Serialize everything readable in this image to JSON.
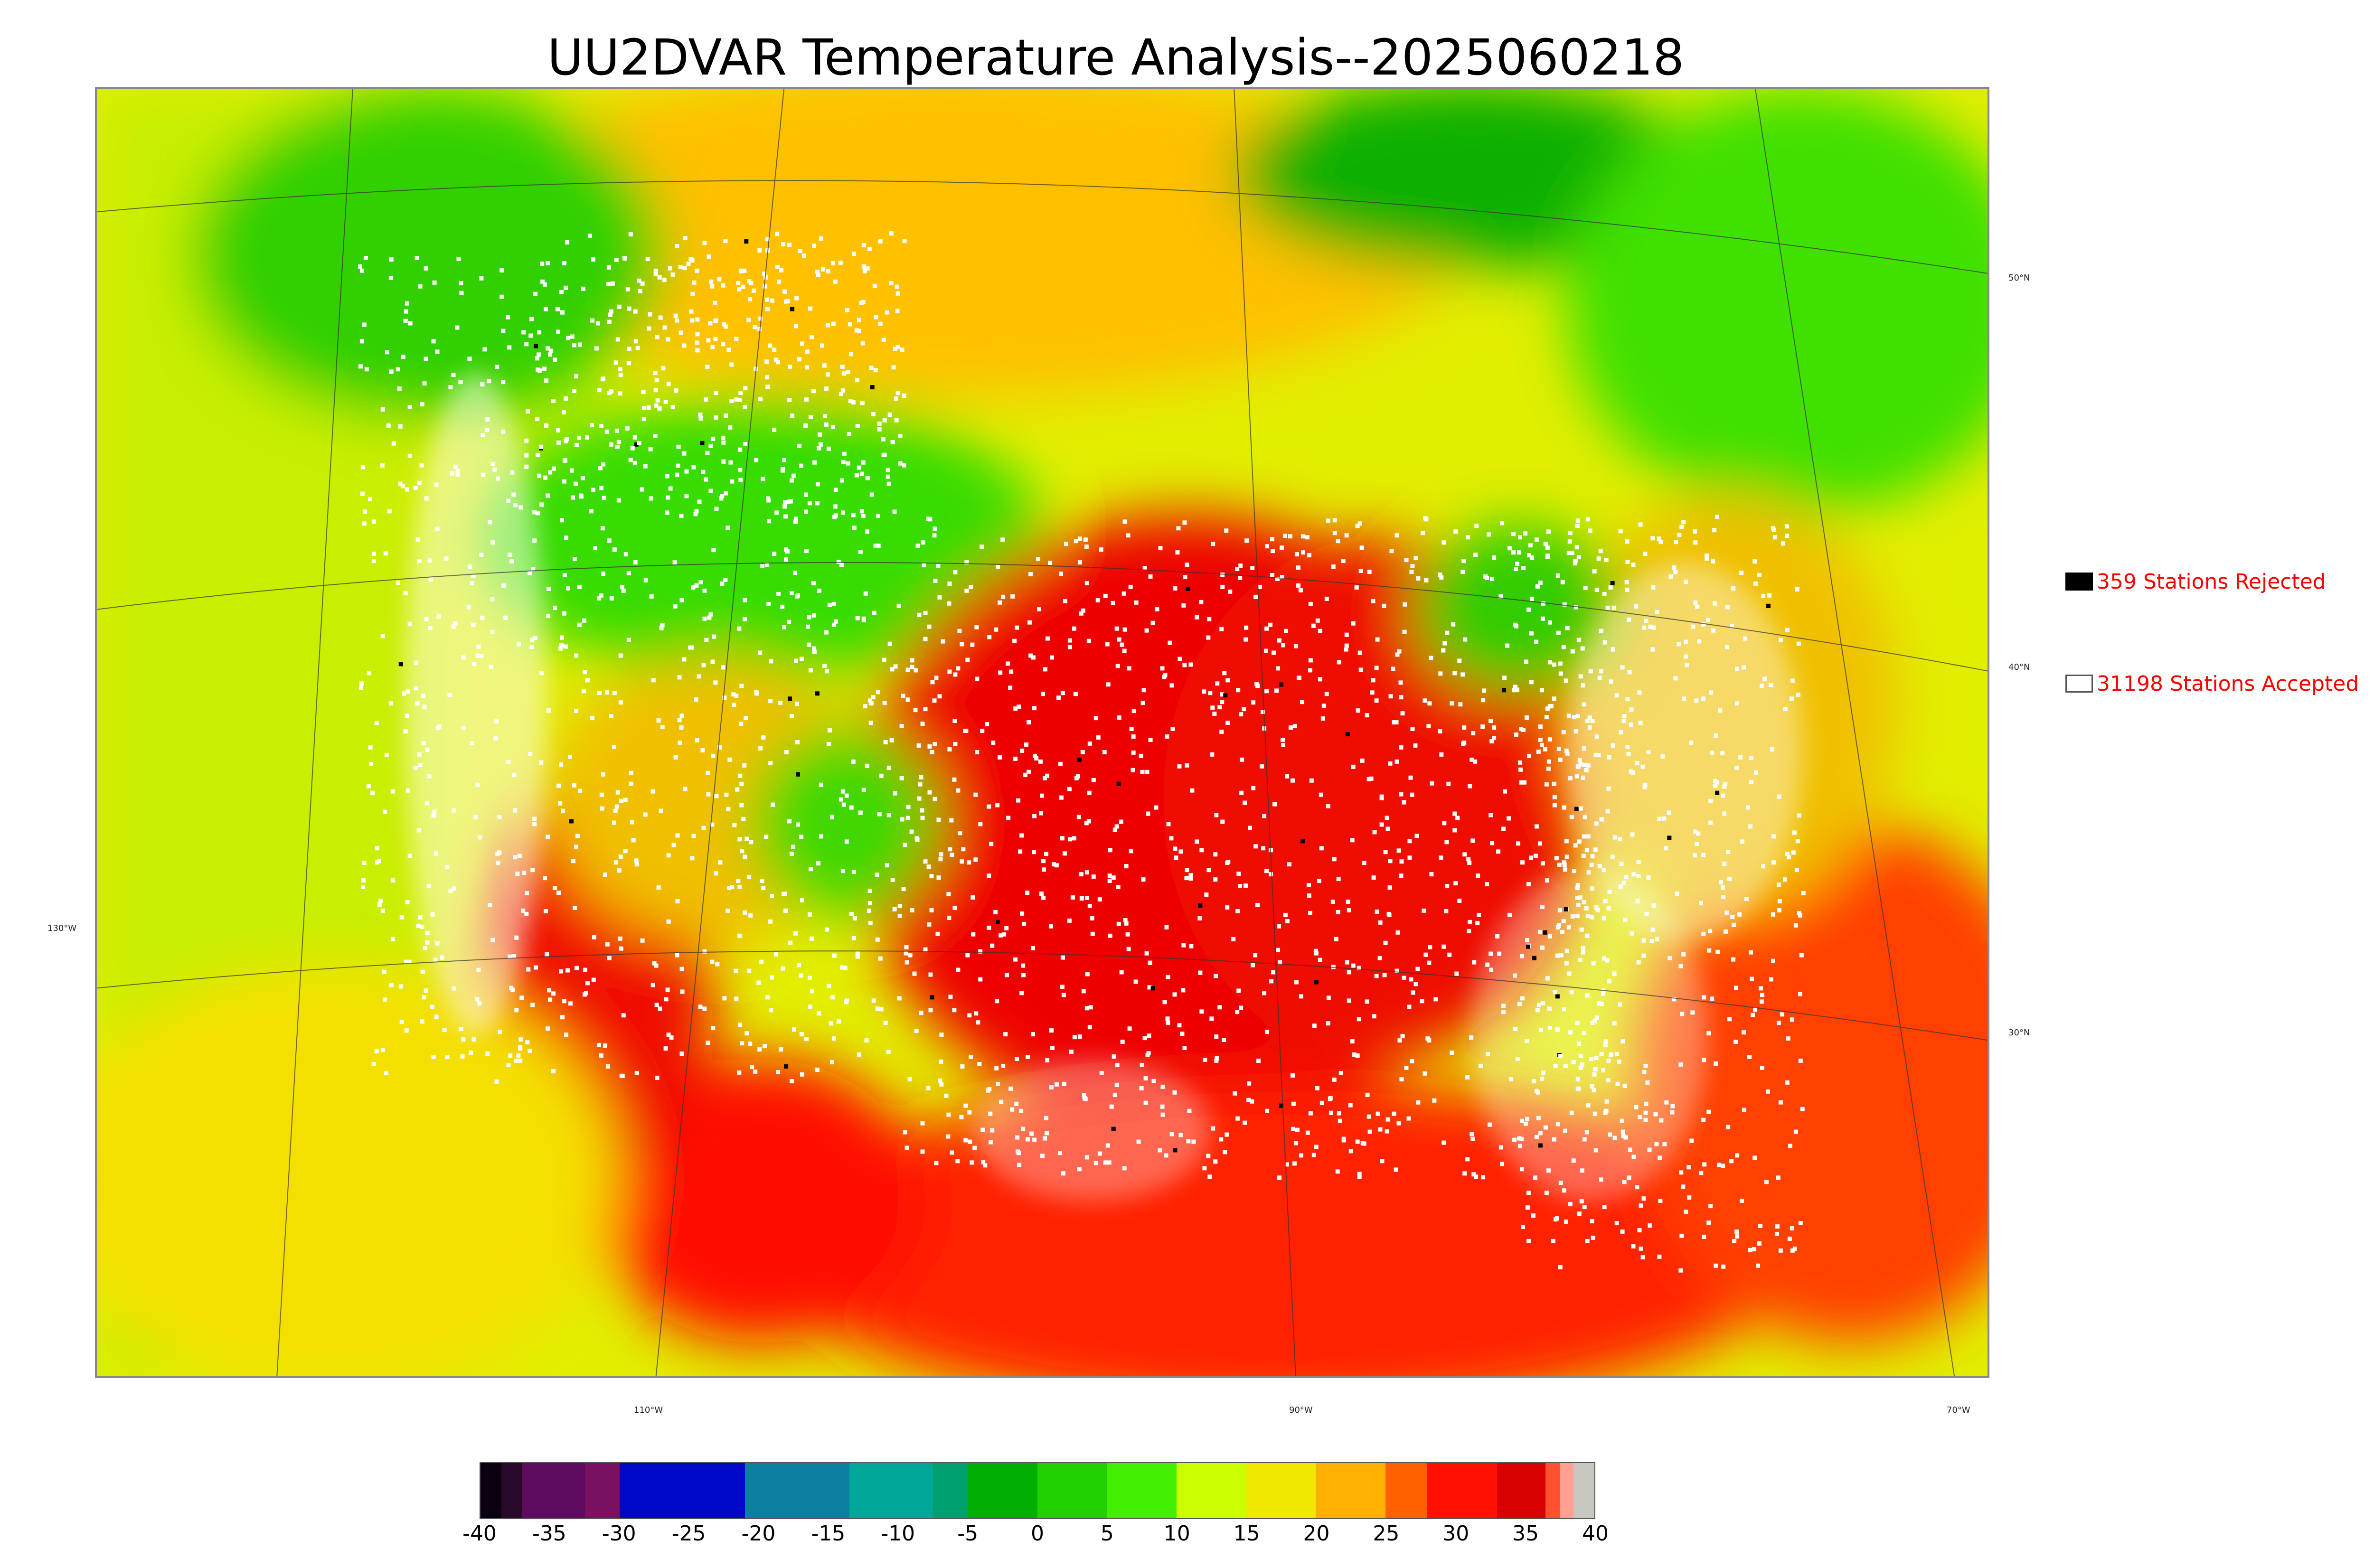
{
  "title": "UU2DVAR Temperature Analysis--2025060218",
  "map": {
    "lat_labels": [
      "50°N",
      "40°N",
      "30°N"
    ],
    "lon_labels": [
      "130°W",
      "110°W",
      "90°W",
      "70°W"
    ]
  },
  "legend": {
    "rejected": {
      "count_label": "359 Stations Rejected",
      "swatch_color": "#000000",
      "text_color": "#ff0000"
    },
    "accepted": {
      "count_label": "31198 Stations Accepted",
      "swatch_color": "#ffffff",
      "text_color": "#ff0000"
    }
  },
  "colorbar": {
    "tick_labels": [
      "-40",
      "-35",
      "-30",
      "-25",
      "-20",
      "-15",
      "-10",
      "-5",
      "0",
      "5",
      "10",
      "15",
      "20",
      "25",
      "30",
      "35",
      "40"
    ],
    "min": -40,
    "max": 40,
    "stops": [
      {
        "from": -40,
        "to": -38.5,
        "color": "#0a000f"
      },
      {
        "from": -38.5,
        "to": -37,
        "color": "#2a0a2a"
      },
      {
        "from": -37,
        "to": -32.5,
        "color": "#5e0a5e"
      },
      {
        "from": -32.5,
        "to": -30,
        "color": "#7a1060"
      },
      {
        "from": -30,
        "to": -21,
        "color": "#0008c8"
      },
      {
        "from": -21,
        "to": -13.5,
        "color": "#0a7fa0"
      },
      {
        "from": -13.5,
        "to": -7.5,
        "color": "#00a89a"
      },
      {
        "from": -7.5,
        "to": -5,
        "color": "#00a070"
      },
      {
        "from": -5,
        "to": 0,
        "color": "#00b000"
      },
      {
        "from": 0,
        "to": 5,
        "color": "#20d000"
      },
      {
        "from": 5,
        "to": 10,
        "color": "#40f000"
      },
      {
        "from": 10,
        "to": 15,
        "color": "#ccff00"
      },
      {
        "from": 15,
        "to": 20,
        "color": "#f0e800"
      },
      {
        "from": 20,
        "to": 25,
        "color": "#ffb000"
      },
      {
        "from": 25,
        "to": 28,
        "color": "#ff6000"
      },
      {
        "from": 28,
        "to": 33,
        "color": "#ff1000"
      },
      {
        "from": 33,
        "to": 36.5,
        "color": "#d80000"
      },
      {
        "from": 36.5,
        "to": 37.5,
        "color": "#ff5030"
      },
      {
        "from": 37.5,
        "to": 38.5,
        "color": "#ffa090"
      },
      {
        "from": 38.5,
        "to": 40,
        "color": "#c8c8c0"
      }
    ]
  }
}
